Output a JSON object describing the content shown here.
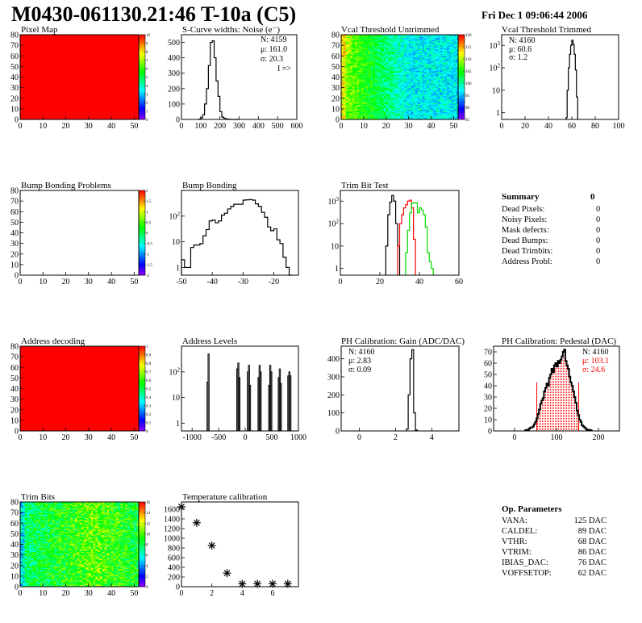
{
  "header": {
    "title": "M0430-061130.21:46 T-10a (C5)",
    "date": "Fri Dec  1 09:06:44 2006"
  },
  "colors": {
    "hist": "#000000",
    "trim_red": "#ff0000",
    "trim_green": "#00dd00",
    "pedestal_fill": "#ff0000"
  },
  "summary": {
    "title": "Summary",
    "total": "0",
    "rows": [
      {
        "label": "Dead Pixels:",
        "value": "0"
      },
      {
        "label": "Noisy Pixels:",
        "value": "0"
      },
      {
        "label": "Mask defects:",
        "value": "0"
      },
      {
        "label": "Dead Bumps:",
        "value": "0"
      },
      {
        "label": "Dead Trimbits:",
        "value": "0"
      },
      {
        "label": "Address Probl:",
        "value": "0"
      }
    ]
  },
  "op_parameters": {
    "title": "Op. Parameters",
    "rows": [
      {
        "label": "VANA:",
        "value": "125 DAC"
      },
      {
        "label": "CALDEL:",
        "value": "89 DAC"
      },
      {
        "label": "VTHR:",
        "value": "68 DAC"
      },
      {
        "label": "VTRIM:",
        "value": "86 DAC"
      },
      {
        "label": "IBIAS_DAC:",
        "value": "76 DAC"
      },
      {
        "label": "VOFFSETOP:",
        "value": "62 DAC"
      }
    ]
  },
  "chart_data": [
    {
      "type": "heatmap",
      "title": "Pixel Map",
      "xlim": [
        0,
        52
      ],
      "ylim": [
        0,
        80
      ],
      "xticks": [
        0,
        10,
        20,
        30,
        40,
        50
      ],
      "yticks": [
        0,
        10,
        20,
        30,
        40,
        50,
        60,
        70,
        80
      ],
      "zlim": [
        0,
        10
      ],
      "zticks": [
        "0",
        "1",
        "2",
        "3",
        "4",
        "5",
        "6",
        "7",
        "8",
        "9",
        "10"
      ],
      "uniform_value": 10
    },
    {
      "type": "bar",
      "title": "S-Curve widths: Noise (e⁻)",
      "xlim": [
        0,
        600
      ],
      "ylim": [
        0,
        550
      ],
      "xticks": [
        0,
        100,
        200,
        300,
        400,
        500,
        600
      ],
      "yticks": [
        0,
        100,
        200,
        300,
        400,
        500
      ],
      "x_start": 90,
      "bin_width": 10,
      "counts": [
        2,
        10,
        30,
        100,
        200,
        350,
        500,
        510,
        400,
        250,
        150,
        50,
        15,
        8,
        3,
        2,
        1,
        0,
        0,
        0,
        1
      ],
      "stats": {
        "n": "N: 4159",
        "mean": "μ: 161.0",
        "sigma": "σ: 20.3",
        "overflow": "I =>"
      }
    },
    {
      "type": "heatmap",
      "title": "Vcal Threshold Untrimmed",
      "xlim": [
        0,
        52
      ],
      "ylim": [
        0,
        80
      ],
      "xticks": [
        0,
        10,
        20,
        30,
        40,
        50
      ],
      "yticks": [
        0,
        10,
        20,
        30,
        40,
        50,
        60,
        70,
        80
      ],
      "zlim": [
        85,
        120
      ],
      "zticks": [
        "85",
        "90",
        "95",
        "100",
        "105",
        "110",
        "115",
        "120"
      ],
      "typical_range": [
        95,
        109
      ]
    },
    {
      "type": "bar",
      "title": "Vcal Threshold Trimmed",
      "xlim": [
        0,
        100
      ],
      "ylim": [
        0.5,
        3000
      ],
      "ylog": true,
      "xticks": [
        0,
        20,
        40,
        60,
        80,
        100
      ],
      "yticks": [
        1,
        10,
        100,
        1000
      ],
      "x_start": 55,
      "bin_width": 1,
      "counts": [
        0.6,
        10,
        100,
        400,
        1000,
        1700,
        1100,
        400,
        80,
        5
      ],
      "stats": {
        "n": "N: 4160",
        "mean": "μ: 60.6",
        "sigma": "σ:  1.2"
      }
    },
    {
      "type": "heatmap",
      "title": "Bump Bonding Problems",
      "xlim": [
        0,
        52
      ],
      "ylim": [
        0,
        80
      ],
      "xticks": [
        0,
        10,
        20,
        30,
        40,
        50
      ],
      "yticks": [
        0,
        10,
        20,
        30,
        40,
        50,
        60,
        70,
        80
      ],
      "zlim": [
        -2,
        2
      ],
      "zticks": [
        "-2",
        "-1.5",
        "-1",
        "-0.5",
        "0",
        "0.5",
        "1",
        "1.5",
        "2"
      ],
      "empty": true
    },
    {
      "type": "bar",
      "title": "Bump Bonding",
      "xlim": [
        -50,
        -12
      ],
      "ylim": [
        0.5,
        1000
      ],
      "ylog": true,
      "xticks": [
        -50,
        -40,
        -30,
        -20
      ],
      "yticks": [
        1,
        10,
        100
      ],
      "x_start": -50,
      "bin_width": 1,
      "counts": [
        2,
        1,
        1,
        6,
        7.5,
        7.5,
        8.5,
        17,
        30,
        65,
        70,
        55,
        65,
        110,
        130,
        190,
        240,
        290,
        290,
        290,
        420,
        430,
        440,
        420,
        300,
        240,
        140,
        90,
        38,
        27,
        32,
        12,
        8.5,
        2.5,
        1,
        0.5
      ]
    },
    {
      "type": "bar",
      "title": "Trim Bit Test",
      "xlim": [
        0,
        60
      ],
      "ylim": [
        0.5,
        3000
      ],
      "ylog": true,
      "xticks": [
        0,
        20,
        40,
        60
      ],
      "yticks": [
        1,
        10,
        100,
        1000
      ],
      "series": [
        {
          "color": "#000000",
          "x_start": 23,
          "bin_width": 1,
          "counts": [
            10,
            250,
            900,
            1800,
            1000,
            100,
            10
          ]
        },
        {
          "color": "#ff0000",
          "x_start": 29,
          "bin_width": 1,
          "counts": [
            10,
            100,
            250,
            500,
            700,
            1000,
            1100,
            500,
            20
          ]
        },
        {
          "color": "#00dd00",
          "x_start": 33,
          "bin_width": 1,
          "counts": [
            5,
            50,
            300,
            800,
            850,
            850,
            300,
            500,
            400,
            250,
            70,
            5,
            2,
            1
          ]
        }
      ]
    },
    {
      "type": "heatmap",
      "title": "Address decoding",
      "xlim": [
        0,
        52
      ],
      "ylim": [
        0,
        80
      ],
      "xticks": [
        0,
        10,
        20,
        30,
        40,
        50
      ],
      "yticks": [
        0,
        10,
        20,
        30,
        40,
        50,
        60,
        70,
        80
      ],
      "zlim": [
        0,
        1
      ],
      "zticks": [
        "0",
        "0.1",
        "0.2",
        "0.3",
        "0.4",
        "0.5",
        "0.6",
        "0.7",
        "0.8",
        "0.9",
        "1"
      ],
      "uniform_value": 1
    },
    {
      "type": "bar",
      "title": "Address Levels",
      "xlim": [
        -1200,
        1000
      ],
      "ylim": [
        0.5,
        1000
      ],
      "ylog": true,
      "xticks": [
        -1000,
        -500,
        0,
        500,
        1000
      ],
      "yticks": [
        1,
        10,
        100
      ],
      "bin_width": 20,
      "bins": [
        [
          -720,
          40
        ],
        [
          -700,
          500
        ],
        [
          -160,
          130
        ],
        [
          -140,
          220
        ],
        [
          -120,
          60
        ],
        [
          40,
          100
        ],
        [
          60,
          180
        ],
        [
          80,
          30
        ],
        [
          240,
          60
        ],
        [
          260,
          180
        ],
        [
          280,
          100
        ],
        [
          440,
          30
        ],
        [
          460,
          180
        ],
        [
          480,
          100
        ],
        [
          620,
          60
        ],
        [
          640,
          130
        ],
        [
          660,
          35
        ],
        [
          800,
          70
        ],
        [
          820,
          100
        ],
        [
          840,
          70
        ]
      ]
    },
    {
      "type": "bar",
      "title": "PH Calibration: Gain (ADC/DAC)",
      "xlim": [
        -1,
        5.5
      ],
      "ylim": [
        0,
        470
      ],
      "xticks": [
        0,
        2,
        4
      ],
      "yticks": [
        0,
        100,
        200,
        300,
        400
      ],
      "x_start": 2.6,
      "bin_width": 0.1,
      "counts": [
        10,
        200,
        400,
        450,
        100,
        5
      ],
      "stats": {
        "n": "N: 4160",
        "mean": "μ: 2.83",
        "sigma": "σ: 0.09"
      }
    },
    {
      "type": "bar",
      "title": "PH Calibration: Pedestal (DAC)",
      "xlim": [
        -50,
        250
      ],
      "ylim": [
        0,
        75
      ],
      "xticks": [
        0,
        100,
        200
      ],
      "yticks": [
        0,
        10,
        20,
        30,
        40,
        50,
        60,
        70
      ],
      "x_start": 25,
      "bin_width": 3,
      "counts": [
        0.5,
        1,
        1,
        2,
        3,
        3,
        4,
        6,
        8,
        11,
        15,
        19,
        24,
        27,
        29,
        35,
        38,
        42,
        40,
        47,
        50,
        55,
        52,
        58,
        60,
        57,
        62,
        60,
        63,
        66,
        70,
        72,
        62,
        58,
        55,
        48,
        43,
        40,
        35,
        30,
        25,
        18,
        14,
        10,
        8,
        5,
        4,
        3,
        2,
        1,
        1,
        1,
        0.5
      ],
      "fit_range": [
        53,
        153
      ],
      "stats": {
        "n": "N: 4160",
        "mean": "μ: 103.1",
        "sigma": "σ: 24.6"
      }
    },
    {
      "type": "heatmap",
      "title": "Trim Bits",
      "xlim": [
        0,
        52
      ],
      "ylim": [
        0,
        80
      ],
      "xticks": [
        0,
        10,
        20,
        30,
        40,
        50
      ],
      "yticks": [
        0,
        10,
        20,
        30,
        40,
        50,
        60,
        70,
        80
      ],
      "zlim": [
        0,
        16
      ],
      "zticks": [
        "0",
        "2",
        "4",
        "6",
        "8",
        "10",
        "12",
        "14",
        "16"
      ],
      "typical_range": [
        6,
        12
      ]
    },
    {
      "type": "scatter",
      "title": "Temperature calibration",
      "xlim": [
        0,
        7.7
      ],
      "ylim": [
        0,
        1750
      ],
      "xticks": [
        0,
        2,
        4,
        6
      ],
      "yticks": [
        0,
        200,
        400,
        600,
        800,
        1000,
        1200,
        1400,
        1600
      ],
      "x": [
        0,
        1,
        2,
        3,
        4,
        5,
        6,
        7
      ],
      "y": [
        1650,
        1320,
        850,
        280,
        60,
        60,
        60,
        60
      ],
      "marker": "star"
    }
  ]
}
